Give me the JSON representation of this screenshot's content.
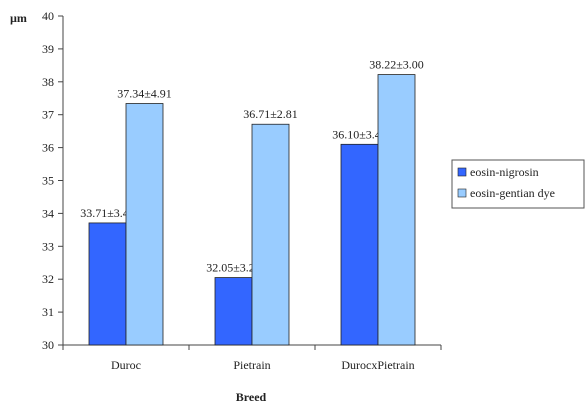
{
  "chart_data": {
    "type": "bar",
    "title": "",
    "xlabel": "Breed",
    "ylabel": "µm",
    "categories": [
      "Duroc",
      "Pietrain",
      "DurocxPietrain"
    ],
    "series": [
      {
        "name": "eosin-nigrosin",
        "color": "#3366ff",
        "values": [
          33.71,
          32.05,
          36.1
        ],
        "labels": [
          "33.71±3.42",
          "32.05±3.23",
          "36.10±3.43"
        ]
      },
      {
        "name": "eosin-gentian dye",
        "color": "#99ccff",
        "values": [
          37.34,
          36.71,
          38.22
        ],
        "labels": [
          "37.34±4.91",
          "36.71±2.81",
          "38.22±3.00"
        ]
      }
    ],
    "ylim": [
      30,
      40
    ],
    "yticks": [
      30,
      31,
      32,
      33,
      34,
      35,
      36,
      37,
      38,
      39,
      40
    ],
    "grid": false,
    "legend_position": "right"
  }
}
